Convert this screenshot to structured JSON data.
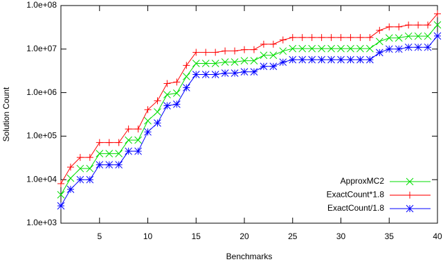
{
  "chart_data": {
    "type": "line",
    "xlabel": "Benchmarks",
    "ylabel": "Solution Count",
    "x": [
      1,
      2,
      3,
      4,
      5,
      6,
      7,
      8,
      9,
      10,
      11,
      12,
      13,
      14,
      15,
      16,
      17,
      18,
      19,
      20,
      21,
      22,
      23,
      24,
      25,
      26,
      27,
      28,
      29,
      30,
      31,
      32,
      33,
      34,
      35,
      36,
      37,
      38,
      39,
      40
    ],
    "xlim": [
      1,
      40
    ],
    "xticks": [
      5,
      10,
      15,
      20,
      25,
      30,
      35,
      40
    ],
    "ylim": [
      1000,
      100000000
    ],
    "ylog": true,
    "yticks": [
      {
        "value": 1000,
        "label": "1.0e+03"
      },
      {
        "value": 10000,
        "label": "1.0e+04"
      },
      {
        "value": 100000,
        "label": "1.0e+05"
      },
      {
        "value": 1000000,
        "label": "1.0e+06"
      },
      {
        "value": 10000000,
        "label": "1.0e+07"
      },
      {
        "value": 100000000,
        "label": "1.0e+08"
      }
    ],
    "legend": "lower right",
    "series": [
      {
        "name": "ApproxMC2",
        "color": "#00dd00",
        "marker": "x",
        "values": [
          4500,
          10800,
          18000,
          18000,
          39600,
          39600,
          39600,
          81000,
          81000,
          225000,
          360000,
          900000,
          972000,
          2340000,
          4680000,
          4680000,
          4680000,
          5040000,
          5040000,
          5400000,
          5400000,
          7200000,
          7200000,
          9000000,
          10260000,
          10260000,
          10260000,
          10260000,
          10260000,
          10260000,
          10260000,
          10260000,
          10260000,
          14940000,
          18000000,
          18000000,
          19800000,
          19800000,
          19800000,
          36000000
        ]
      },
      {
        "name": "ExactCount*1.8",
        "color": "#ff0000",
        "marker": "plus",
        "values": [
          8100,
          19400,
          32400,
          32400,
          71300,
          71300,
          71300,
          146000,
          146000,
          405000,
          648000,
          1620000,
          1750000,
          4210000,
          8420000,
          8420000,
          8420000,
          9070000,
          9070000,
          9720000,
          9720000,
          12960000,
          12960000,
          16200000,
          18470000,
          18470000,
          18470000,
          18470000,
          18470000,
          18470000,
          18470000,
          18470000,
          18470000,
          26900000,
          32400000,
          32400000,
          35600000,
          35600000,
          35600000,
          64800000
        ]
      },
      {
        "name": "ExactCount/1.8",
        "color": "#0000ff",
        "marker": "star",
        "values": [
          2500,
          6000,
          10000,
          10000,
          22000,
          22000,
          22000,
          45000,
          45000,
          125000,
          200000,
          500000,
          540000,
          1300000,
          2600000,
          2600000,
          2600000,
          2800000,
          2800000,
          3000000,
          3000000,
          4000000,
          4000000,
          5000000,
          5700000,
          5700000,
          5700000,
          5700000,
          5700000,
          5700000,
          5700000,
          5700000,
          5700000,
          8300000,
          10000000,
          10000000,
          11000000,
          11000000,
          11000000,
          20000000
        ]
      }
    ]
  }
}
